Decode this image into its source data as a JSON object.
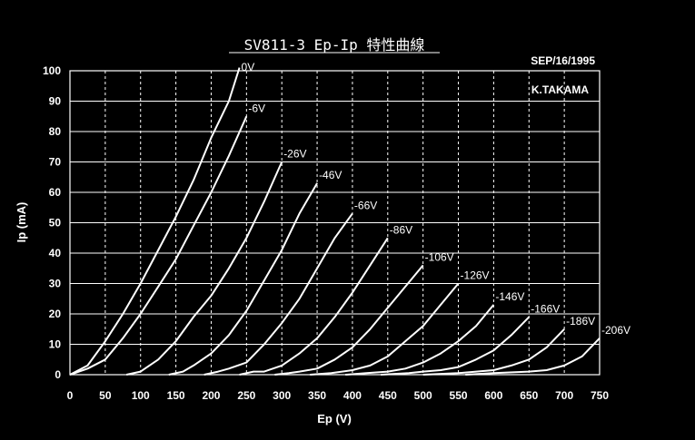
{
  "chart_data": {
    "type": "line",
    "title": "SV811-3 Ep-Ip 特性曲線",
    "date": "SEP/16/1995",
    "author": "K.TAKAMA",
    "xlabel": "Ep (V)",
    "ylabel": "Ip (mA)",
    "xlim": [
      0,
      750
    ],
    "ylim": [
      0,
      100
    ],
    "xticks": [
      0,
      50,
      100,
      150,
      200,
      250,
      300,
      350,
      400,
      450,
      500,
      550,
      600,
      650,
      700,
      750
    ],
    "yticks": [
      0,
      10,
      20,
      30,
      40,
      50,
      60,
      70,
      80,
      90,
      100
    ],
    "grid": true,
    "background": "#000000",
    "line_color": "#ffffff",
    "series": [
      {
        "name": "0V",
        "points": [
          [
            0,
            0
          ],
          [
            25,
            3
          ],
          [
            50,
            11
          ],
          [
            75,
            20
          ],
          [
            100,
            30
          ],
          [
            125,
            41
          ],
          [
            150,
            52
          ],
          [
            175,
            64
          ],
          [
            200,
            78
          ],
          [
            225,
            90
          ],
          [
            240,
            101
          ]
        ]
      },
      {
        "name": "-6V",
        "points": [
          [
            0,
            0
          ],
          [
            25,
            2
          ],
          [
            50,
            5
          ],
          [
            75,
            12
          ],
          [
            100,
            20
          ],
          [
            125,
            29
          ],
          [
            150,
            38
          ],
          [
            175,
            49
          ],
          [
            200,
            60
          ],
          [
            225,
            72
          ],
          [
            250,
            85
          ]
        ]
      },
      {
        "name": "-26V",
        "points": [
          [
            80,
            0
          ],
          [
            100,
            1
          ],
          [
            125,
            5
          ],
          [
            150,
            11
          ],
          [
            175,
            19
          ],
          [
            200,
            26
          ],
          [
            225,
            35
          ],
          [
            250,
            45
          ],
          [
            275,
            57
          ],
          [
            300,
            70
          ]
        ]
      },
      {
        "name": "-46V",
        "points": [
          [
            140,
            0
          ],
          [
            160,
            1
          ],
          [
            175,
            3
          ],
          [
            200,
            7
          ],
          [
            225,
            13
          ],
          [
            250,
            21
          ],
          [
            275,
            31
          ],
          [
            300,
            41
          ],
          [
            325,
            53
          ],
          [
            350,
            63
          ]
        ]
      },
      {
        "name": "-66V",
        "points": [
          [
            190,
            0
          ],
          [
            210,
            1
          ],
          [
            225,
            2
          ],
          [
            250,
            4
          ],
          [
            275,
            10
          ],
          [
            300,
            17
          ],
          [
            325,
            25
          ],
          [
            350,
            35
          ],
          [
            375,
            45
          ],
          [
            400,
            53
          ]
        ]
      },
      {
        "name": "-86V",
        "points": [
          [
            240,
            0
          ],
          [
            260,
            1
          ],
          [
            275,
            1
          ],
          [
            300,
            3
          ],
          [
            325,
            7
          ],
          [
            350,
            12
          ],
          [
            375,
            19
          ],
          [
            400,
            27
          ],
          [
            425,
            36
          ],
          [
            450,
            45
          ]
        ]
      },
      {
        "name": "-106V",
        "points": [
          [
            290,
            0
          ],
          [
            310,
            0.5
          ],
          [
            325,
            1
          ],
          [
            350,
            2
          ],
          [
            375,
            5
          ],
          [
            400,
            9
          ],
          [
            425,
            15
          ],
          [
            450,
            22
          ],
          [
            475,
            29
          ],
          [
            500,
            36
          ]
        ]
      },
      {
        "name": "-126V",
        "points": [
          [
            340,
            0
          ],
          [
            370,
            0.5
          ],
          [
            400,
            1.5
          ],
          [
            425,
            3
          ],
          [
            450,
            6
          ],
          [
            475,
            11
          ],
          [
            500,
            16
          ],
          [
            525,
            23
          ],
          [
            550,
            30
          ]
        ]
      },
      {
        "name": "-146V",
        "points": [
          [
            390,
            0
          ],
          [
            420,
            0.5
          ],
          [
            450,
            1
          ],
          [
            475,
            2
          ],
          [
            500,
            4
          ],
          [
            525,
            7
          ],
          [
            550,
            11
          ],
          [
            575,
            16
          ],
          [
            600,
            23
          ]
        ]
      },
      {
        "name": "-166V",
        "points": [
          [
            440,
            0
          ],
          [
            480,
            0.5
          ],
          [
            500,
            1
          ],
          [
            525,
            1.5
          ],
          [
            550,
            2.5
          ],
          [
            575,
            5
          ],
          [
            600,
            8
          ],
          [
            625,
            13
          ],
          [
            650,
            19
          ]
        ]
      },
      {
        "name": "-186V",
        "points": [
          [
            500,
            0
          ],
          [
            550,
            0.5
          ],
          [
            600,
            1.5
          ],
          [
            625,
            3
          ],
          [
            650,
            5
          ],
          [
            675,
            9
          ],
          [
            700,
            15
          ]
        ]
      },
      {
        "name": "-206V",
        "points": [
          [
            560,
            0
          ],
          [
            600,
            0.5
          ],
          [
            650,
            1
          ],
          [
            675,
            1.5
          ],
          [
            700,
            3
          ],
          [
            725,
            6
          ],
          [
            750,
            12
          ]
        ]
      }
    ]
  }
}
